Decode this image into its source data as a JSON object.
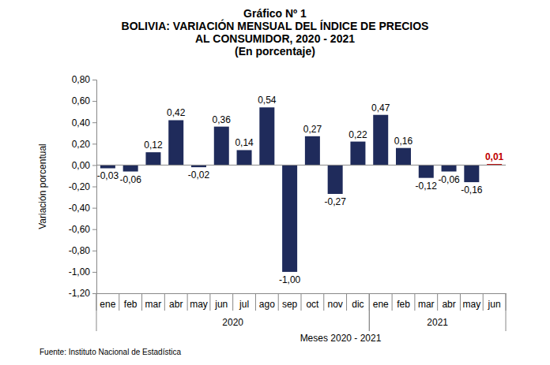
{
  "chart_data": {
    "type": "bar",
    "title": [
      "Gráfico Nº 1",
      "BOLIVIA: VARIACIÓN MENSUAL DEL ÍNDICE DE PRECIOS",
      "AL CONSUMIDOR, 2020 - 2021",
      "(En porcentaje)"
    ],
    "y_label": "Variación porcentual",
    "x_label": "Meses 2020 - 2021",
    "source": "Fuente: Instituto Nacional de Estadística",
    "categories": [
      "ene",
      "feb",
      "mar",
      "abr",
      "may",
      "jun",
      "jul",
      "ago",
      "sep",
      "oct",
      "nov",
      "dic",
      "ene",
      "feb",
      "mar",
      "abr",
      "may",
      "jun"
    ],
    "category_groups": [
      {
        "label": "2020",
        "size": 12
      },
      {
        "label": "2021",
        "size": 6
      }
    ],
    "values": [
      -0.03,
      -0.06,
      0.12,
      0.42,
      -0.02,
      0.36,
      0.14,
      0.54,
      -1.0,
      0.27,
      -0.27,
      0.22,
      0.47,
      0.16,
      -0.12,
      -0.06,
      -0.16,
      0.01
    ],
    "value_labels": [
      "-0,03",
      "-0,06",
      "0,12",
      "0,42",
      "-0,02",
      "0,36",
      "0,14",
      "0,54",
      "-1,00",
      "0,27",
      "-0,27",
      "0,22",
      "0,47",
      "0,16",
      "-0,12",
      "-0,06",
      "-0,16",
      "0,01"
    ],
    "colors": [
      "#1f2b5b",
      "#1f2b5b",
      "#1f2b5b",
      "#1f2b5b",
      "#1f2b5b",
      "#1f2b5b",
      "#1f2b5b",
      "#1f2b5b",
      "#1f2b5b",
      "#1f2b5b",
      "#1f2b5b",
      "#1f2b5b",
      "#1f2b5b",
      "#1f2b5b",
      "#1f2b5b",
      "#1f2b5b",
      "#1f2b5b",
      "#c00000"
    ],
    "ylim": [
      -1.2,
      0.8
    ],
    "yticks": [
      {
        "value": 0.8,
        "label": "0,80"
      },
      {
        "value": 0.6,
        "label": "0,60"
      },
      {
        "value": 0.4,
        "label": "0,40"
      },
      {
        "value": 0.2,
        "label": "0,20"
      },
      {
        "value": 0,
        "label": "0,00"
      },
      {
        "value": -0.2,
        "label": "-0,20"
      },
      {
        "value": -0.4,
        "label": "-0,40"
      },
      {
        "value": -0.6,
        "label": "-0,60"
      },
      {
        "value": -0.8,
        "label": "-0,80"
      },
      {
        "value": -1,
        "label": "-1,00"
      },
      {
        "value": -1.2,
        "label": "-1,20"
      }
    ],
    "grid": false,
    "data_labels": true
  }
}
